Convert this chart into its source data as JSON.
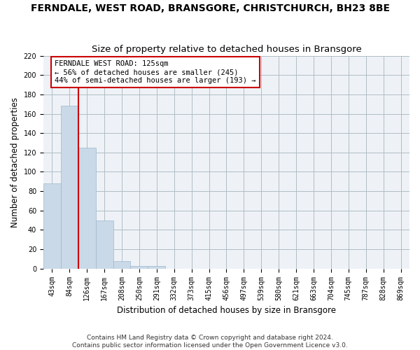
{
  "title": "FERNDALE, WEST ROAD, BRANSGORE, CHRISTCHURCH, BH23 8BE",
  "subtitle": "Size of property relative to detached houses in Bransgore",
  "xlabel": "Distribution of detached houses by size in Bransgore",
  "ylabel": "Number of detached properties",
  "bin_labels": [
    "43sqm",
    "84sqm",
    "126sqm",
    "167sqm",
    "208sqm",
    "250sqm",
    "291sqm",
    "332sqm",
    "373sqm",
    "415sqm",
    "456sqm",
    "497sqm",
    "539sqm",
    "580sqm",
    "621sqm",
    "663sqm",
    "704sqm",
    "745sqm",
    "787sqm",
    "828sqm",
    "869sqm"
  ],
  "bar_values": [
    88,
    168,
    125,
    50,
    8,
    3,
    3,
    0,
    0,
    0,
    0,
    0,
    0,
    0,
    0,
    0,
    0,
    0,
    0,
    0,
    0
  ],
  "bar_color": "#c9d9e8",
  "bar_edge_color": "#a0b8cc",
  "property_line_color": "#cc0000",
  "annotation_line1": "FERNDALE WEST ROAD: 125sqm",
  "annotation_line2": "← 56% of detached houses are smaller (245)",
  "annotation_line3": "44% of semi-detached houses are larger (193) →",
  "annotation_box_color": "#cc0000",
  "ylim": [
    0,
    220
  ],
  "yticks": [
    0,
    20,
    40,
    60,
    80,
    100,
    120,
    140,
    160,
    180,
    200,
    220
  ],
  "grid_color": "#b0bec5",
  "background_color": "#eef2f7",
  "footnote": "Contains HM Land Registry data © Crown copyright and database right 2024.\nContains public sector information licensed under the Open Government Licence v3.0.",
  "title_fontsize": 10,
  "subtitle_fontsize": 9.5,
  "annotation_fontsize": 7.5,
  "tick_fontsize": 7,
  "ylabel_fontsize": 8.5,
  "xlabel_fontsize": 8.5,
  "footnote_fontsize": 6.5
}
